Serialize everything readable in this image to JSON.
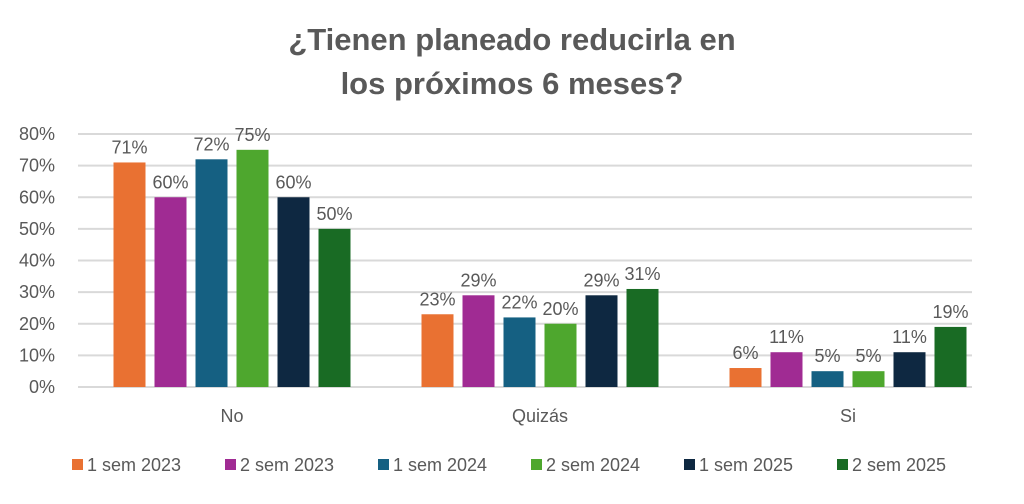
{
  "chart_data": {
    "type": "bar",
    "title_line1": "¿Tienen planeado reducirla en",
    "title_line2": "los próximos 6 meses?",
    "categories": [
      "No",
      "Quizás",
      "Si"
    ],
    "series": [
      {
        "name": "1 sem 2023",
        "color": "#E97132",
        "values": [
          71,
          23,
          6
        ]
      },
      {
        "name": "2 sem 2023",
        "color": "#A02B93",
        "values": [
          60,
          29,
          11
        ]
      },
      {
        "name": "1 sem 2024",
        "color": "#156082",
        "values": [
          72,
          22,
          5
        ]
      },
      {
        "name": "2 sem 2024",
        "color": "#4EA72E",
        "values": [
          75,
          20,
          5
        ]
      },
      {
        "name": "1 sem 2025",
        "color": "#0E2841",
        "values": [
          60,
          29,
          11
        ]
      },
      {
        "name": "2 sem 2025",
        "color": "#196B24",
        "values": [
          50,
          31,
          19
        ]
      }
    ],
    "value_suffix": "%",
    "ylim": [
      0,
      80
    ],
    "yticks": [
      "0%",
      "10%",
      "20%",
      "30%",
      "40%",
      "50%",
      "60%",
      "70%",
      "80%"
    ],
    "grid": true,
    "legend_position": "bottom"
  }
}
